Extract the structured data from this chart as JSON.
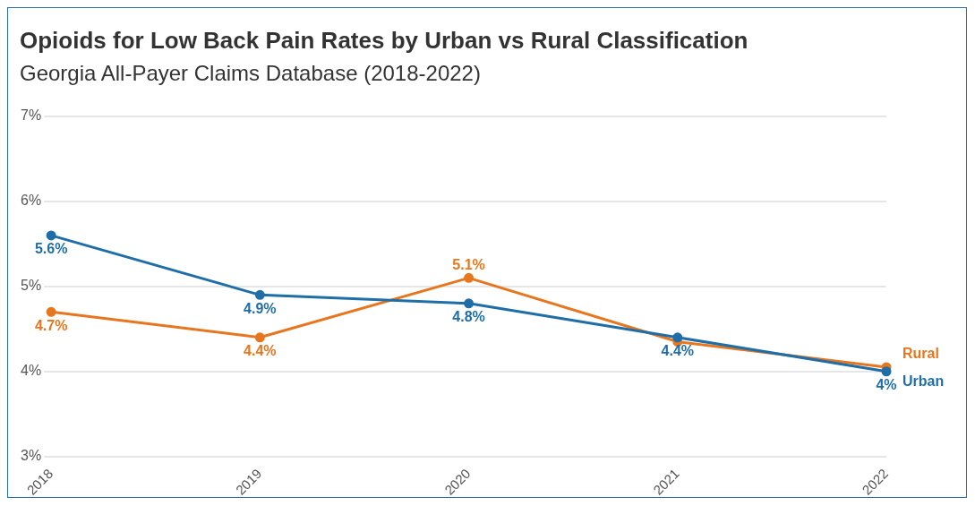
{
  "chart_data": {
    "type": "line",
    "title": "Opioids for Low Back Pain Rates by Urban vs Rural Classification",
    "subtitle": "Georgia All-Payer Claims Database (2018-2022)",
    "categories": [
      "2018",
      "2019",
      "2020",
      "2021",
      "2022"
    ],
    "series": [
      {
        "name": "Urban",
        "color": "#1f6ea8",
        "values": [
          5.6,
          4.9,
          4.8,
          4.4,
          4.0
        ],
        "value_labels": [
          "5.6%",
          "4.9%",
          "4.8%",
          "4.4%",
          "4%"
        ]
      },
      {
        "name": "Rural",
        "color": "#e8761e",
        "values": [
          4.7,
          4.4,
          5.1,
          4.35,
          4.05
        ],
        "value_labels": [
          "4.7%",
          "4.4%",
          "5.1%",
          null,
          null
        ]
      }
    ],
    "ylim": [
      3,
      7
    ],
    "yticks": [
      {
        "value": 3,
        "label": "3%"
      },
      {
        "value": 4,
        "label": "4%"
      },
      {
        "value": 5,
        "label": "5%"
      },
      {
        "value": 6,
        "label": "6%"
      },
      {
        "value": 7,
        "label": "7%"
      }
    ],
    "grid": "y",
    "marker": "circle",
    "line_style": "solid",
    "legend": false
  }
}
